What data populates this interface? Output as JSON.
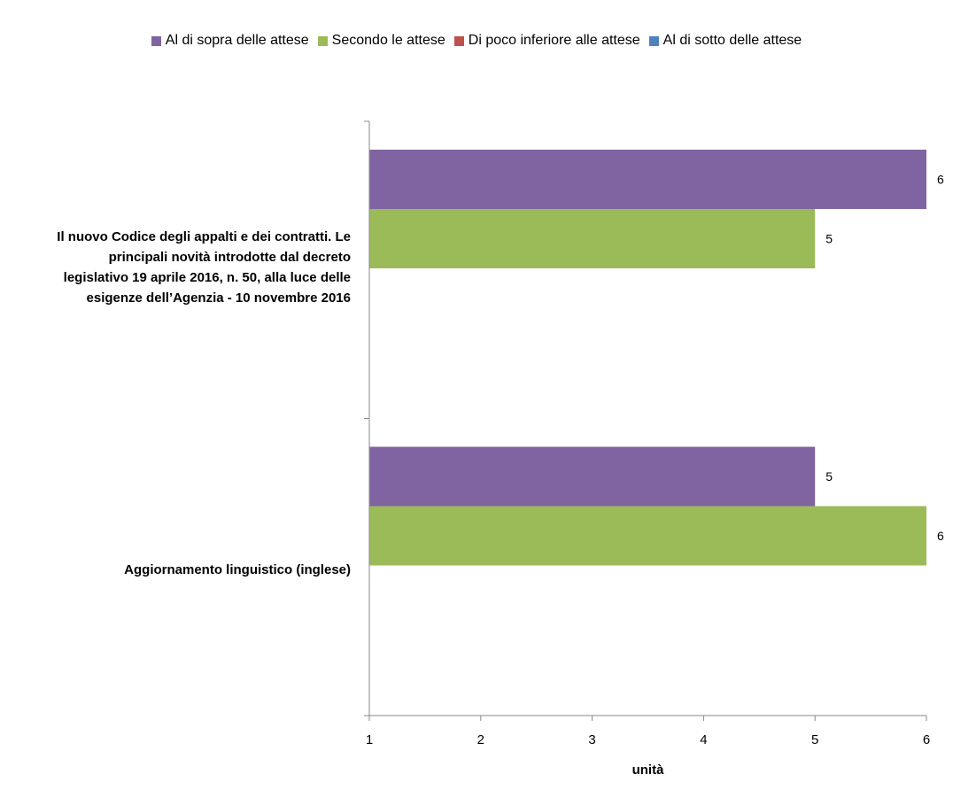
{
  "chart_data": {
    "type": "bar",
    "orientation": "horizontal",
    "categories": [
      "Il nuovo Codice degli appalti e dei contratti. Le principali novità introdotte dal decreto legislativo 19 aprile 2016, n. 50, alla luce delle esigenze dell’Agenzia - 10 novembre 2016",
      "Aggiornamento linguistico (inglese)"
    ],
    "category_lines": [
      [
        "Il nuovo Codice degli appalti e dei contratti. Le",
        "principali novità introdotte dal decreto",
        "legislativo 19 aprile 2016, n. 50, alla luce delle",
        "esigenze dell’Agenzia - 10 novembre 2016"
      ],
      [
        "Aggiornamento linguistico (inglese)"
      ]
    ],
    "series": [
      {
        "name": "Al di sopra delle attese",
        "color": "#8064a2",
        "values": [
          6,
          5
        ]
      },
      {
        "name": "Secondo le attese",
        "color": "#9bbb59",
        "values": [
          5,
          6
        ]
      },
      {
        "name": "Di poco inferiore alle attese",
        "color": "#c0504d",
        "values": [
          null,
          null
        ]
      },
      {
        "name": "Al di sotto delle attese",
        "color": "#4f81bd",
        "values": [
          null,
          null
        ]
      }
    ],
    "xlabel": "unità",
    "ylabel": "",
    "xlim": [
      1,
      6
    ],
    "xticks": [
      1,
      2,
      3,
      4,
      5,
      6
    ],
    "grid": false,
    "legend_position": "top"
  }
}
